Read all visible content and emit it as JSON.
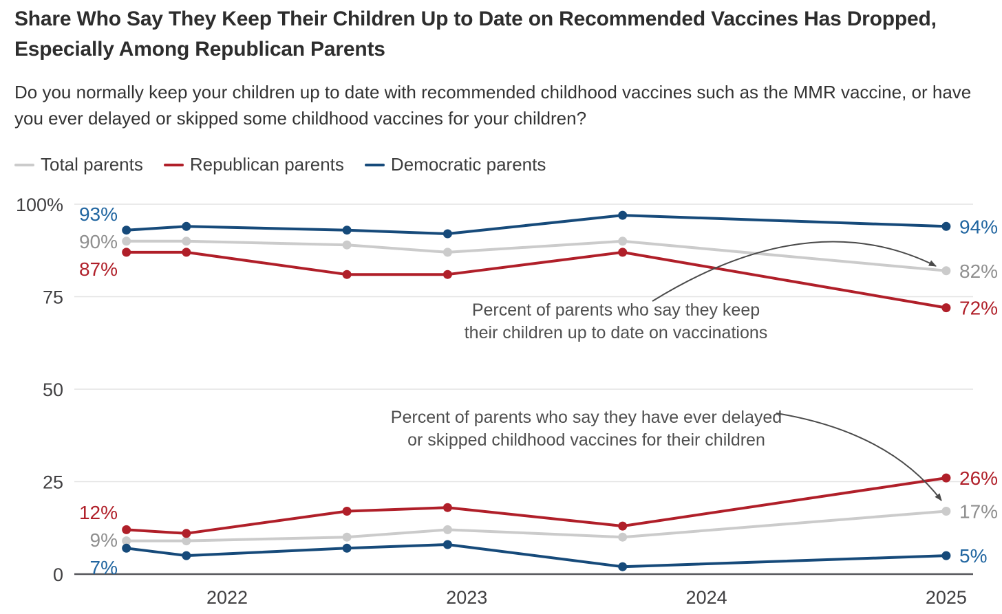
{
  "title": "Share Who Say They Keep Their Children Up to Date on Recommended Vaccines Has Dropped, Especially Among Republican Parents",
  "subtitle": "Do you normally keep your children up to date with recommended childhood vaccines such as the MMR vaccine, or have you ever delayed or skipped some childhood vaccines for your children?",
  "legend": {
    "items": [
      {
        "label": "Total parents",
        "color": "#cbcbcb"
      },
      {
        "label": "Republican parents",
        "color": "#b01f29"
      },
      {
        "label": "Democratic parents",
        "color": "#164a7a"
      }
    ]
  },
  "chart_data": {
    "type": "line",
    "x_unit": "year",
    "x": [
      2021.58,
      2021.83,
      2022.5,
      2022.92,
      2023.65,
      2025.0
    ],
    "x_ticks": [
      2022,
      2023,
      2024,
      2025
    ],
    "x_tick_labels": [
      "2022",
      "2023",
      "2024",
      "2025"
    ],
    "ylim": [
      0,
      100
    ],
    "y_ticks": [
      0,
      25,
      50,
      75,
      100
    ],
    "y_tick_labels": [
      "0",
      "25",
      "50",
      "75",
      "100%"
    ],
    "grid": "horizontal",
    "legend_position": "top",
    "series": [
      {
        "name": "Total parents",
        "group": "up_to_date",
        "color": "#cbcbcb",
        "label_color": "#8f8f8f",
        "values": [
          90,
          90,
          89,
          87,
          90,
          82
        ],
        "start_label": "90%",
        "end_label": "82%"
      },
      {
        "name": "Republican parents",
        "group": "up_to_date",
        "color": "#b01f29",
        "label_color": "#b01f29",
        "values": [
          87,
          87,
          81,
          81,
          87,
          72
        ],
        "start_label": "87%",
        "end_label": "72%"
      },
      {
        "name": "Democratic parents",
        "group": "up_to_date",
        "color": "#164a7a",
        "label_color": "#2065a0",
        "values": [
          93,
          94,
          93,
          92,
          97,
          94
        ],
        "start_label": "93%",
        "end_label": "94%"
      },
      {
        "name": "Total parents",
        "group": "delayed_skipped",
        "color": "#cbcbcb",
        "label_color": "#8f8f8f",
        "values": [
          9,
          9,
          10,
          12,
          10,
          17
        ],
        "start_label": "9%",
        "end_label": "17%"
      },
      {
        "name": "Republican parents",
        "group": "delayed_skipped",
        "color": "#b01f29",
        "label_color": "#b01f29",
        "values": [
          12,
          11,
          17,
          18,
          13,
          26
        ],
        "start_label": "12%",
        "end_label": "26%"
      },
      {
        "name": "Democratic parents",
        "group": "delayed_skipped",
        "color": "#164a7a",
        "label_color": "#2065a0",
        "values": [
          7,
          5,
          7,
          8,
          2,
          5
        ],
        "start_label": "7%",
        "end_label": "5%"
      }
    ],
    "annotations": [
      {
        "id": "up-to-date-note",
        "lines": [
          "Percent of parents who say they  keep",
          "their children up to date on vaccinations"
        ],
        "points_to": "Total parents 82%"
      },
      {
        "id": "delayed-skipped-note",
        "lines": [
          "Percent of parents who say they have ever delayed",
          "or skipped childhood vaccines for their children"
        ],
        "points_to": "Total parents 17%"
      }
    ]
  }
}
